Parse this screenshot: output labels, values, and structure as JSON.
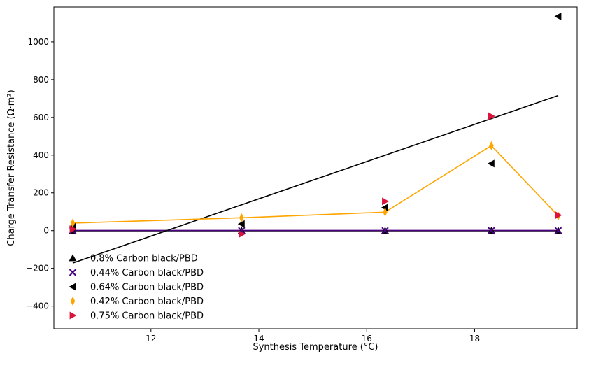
{
  "chart_data": {
    "type": "scatter",
    "title": "",
    "xlabel": "Synthesis Temperature (°C)",
    "ylabel": "Charge Transfer Resistance (Ω·m²)",
    "xlim": [
      10.2,
      19.9
    ],
    "ylim": [
      -520,
      1185
    ],
    "xticks": [
      12,
      14,
      16,
      18
    ],
    "yticks": [
      -400,
      -200,
      0,
      200,
      400,
      600,
      800,
      1000
    ],
    "grid": false,
    "legend_position": "lower-left",
    "series": [
      {
        "name": "0.8% Carbon black/PBD",
        "marker": "triangle-up",
        "color": "#000000",
        "x": [
          10.55,
          13.68,
          16.34,
          18.31,
          19.55
        ],
        "y": [
          0,
          0,
          0,
          0,
          0
        ],
        "line": {
          "color": "#000000",
          "x": [
            10.55,
            13.68,
            16.34,
            18.31,
            19.55
          ],
          "y": [
            -1,
            -1,
            -1,
            -1,
            -1
          ]
        }
      },
      {
        "name": "0.44% Carbon black/PBD",
        "marker": "x",
        "color": "#4b0082",
        "x": [
          10.55,
          13.68,
          16.34,
          18.31,
          19.55
        ],
        "y": [
          0,
          0,
          0,
          0,
          0
        ],
        "line": {
          "color": "#4b0082",
          "x": [
            10.55,
            13.68,
            16.34,
            18.31,
            19.55
          ],
          "y": [
            1,
            1,
            1,
            1,
            1
          ]
        }
      },
      {
        "name": "0.64% Carbon black/PBD",
        "marker": "triangle-left",
        "color": "#000000",
        "x": [
          10.55,
          13.68,
          16.34,
          18.31,
          19.55
        ],
        "y": [
          20,
          35,
          122,
          355,
          1135
        ],
        "line": {
          "color": "#000000",
          "x": [
            10.55,
            19.55
          ],
          "y": [
            -172,
            716
          ]
        }
      },
      {
        "name": "0.42% Carbon black/PBD",
        "marker": "thin-diamond",
        "color": "#ffa500",
        "x": [
          10.55,
          13.68,
          16.34,
          18.31,
          19.55
        ],
        "y": [
          40,
          68,
          98,
          450,
          78
        ],
        "line": {
          "color": "#ffa500",
          "x": [
            10.55,
            13.68,
            16.34,
            18.31,
            19.55
          ],
          "y": [
            40,
            68,
            98,
            450,
            78
          ]
        }
      },
      {
        "name": "0.75% Carbon black/PBD",
        "marker": "triangle-right",
        "color": "#dc143c",
        "x": [
          10.55,
          13.68,
          16.34,
          18.31,
          19.55
        ],
        "y": [
          8,
          -18,
          155,
          607,
          82
        ]
      }
    ]
  }
}
